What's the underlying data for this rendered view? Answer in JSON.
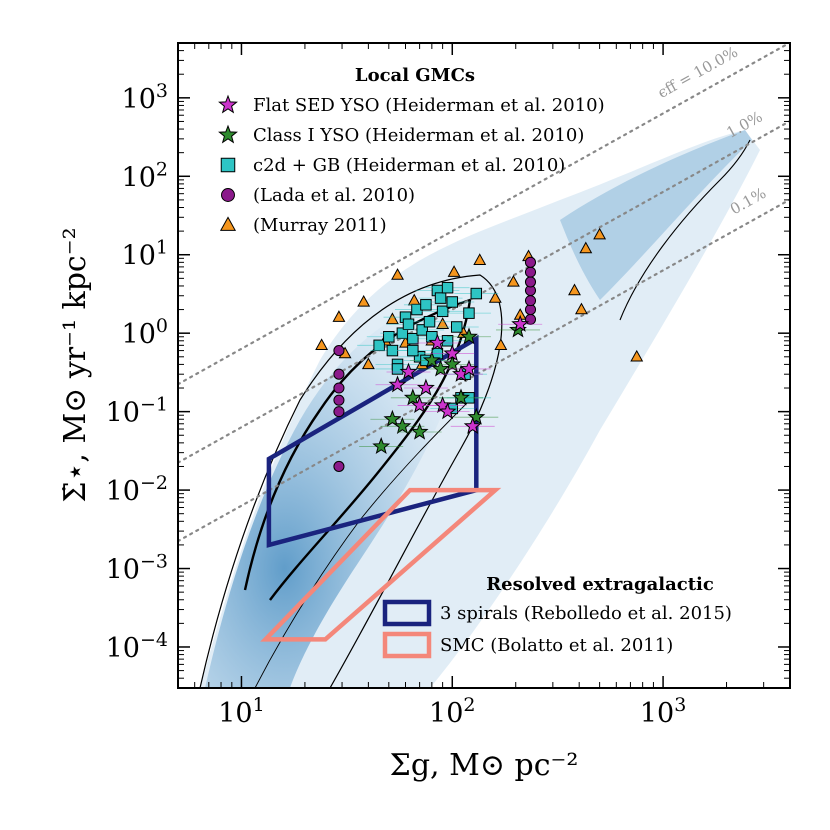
{
  "chart_data": {
    "type": "scatter",
    "title": "",
    "xlabel": "Σg, M⊙ pc⁻²",
    "ylabel": "Σ̇⋆, M⊙ yr⁻¹ kpc⁻²",
    "x_scale": "log",
    "y_scale": "log",
    "xlim": [
      5,
      4000
    ],
    "ylim": [
      3e-05,
      5000
    ],
    "x_ticks": [
      {
        "value": 10,
        "base": "10",
        "exp": "1"
      },
      {
        "value": 100,
        "base": "10",
        "exp": "2"
      },
      {
        "value": 1000,
        "base": "10",
        "exp": "3"
      }
    ],
    "y_ticks": [
      {
        "value": 0.0001,
        "base": "10",
        "exp": "−4"
      },
      {
        "value": 0.001,
        "base": "10",
        "exp": "−3"
      },
      {
        "value": 0.01,
        "base": "10",
        "exp": "−2"
      },
      {
        "value": 0.1,
        "base": "10",
        "exp": "−1"
      },
      {
        "value": 1,
        "base": "10",
        "exp": "0"
      },
      {
        "value": 10,
        "base": "10",
        "exp": "1"
      },
      {
        "value": 100,
        "base": "10",
        "exp": "2"
      },
      {
        "value": 1000,
        "base": "10",
        "exp": "3"
      }
    ],
    "efficiency_lines": [
      {
        "label": "ϵff = 10.0%",
        "eff": 0.1,
        "x_range": [
          5,
          4000
        ],
        "label_x": 1500
      },
      {
        "label": "1.0%",
        "eff": 0.01,
        "x_range": [
          5,
          4000
        ],
        "label_x": 2500
      },
      {
        "label": "0.1%",
        "eff": 0.001,
        "x_range": [
          5,
          4000
        ],
        "label_x": 2600
      }
    ],
    "legend_gmc": {
      "title": "Local GMCs",
      "entries": [
        {
          "label": "Flat SED YSO (Heiderman et al. 2010)",
          "marker": "star",
          "color": "#cc33cc"
        },
        {
          "label": "Class I YSO (Heiderman et al. 2010)",
          "marker": "star",
          "color": "#2e8b2e"
        },
        {
          "label": "c2d + GB (Heiderman et al. 2010)",
          "marker": "square",
          "color": "#2ec4c4"
        },
        {
          "label": "(Lada et al. 2010)",
          "marker": "circle",
          "color": "#8b1a8b"
        },
        {
          "label": "(Murray 2011)",
          "marker": "triangle",
          "color": "#f5961e"
        }
      ]
    },
    "legend_extragalactic": {
      "title": "Resolved extragalactic",
      "entries": [
        {
          "label": "3 spirals (Rebolledo et al. 2015)",
          "color": "#1a237e"
        },
        {
          "label": "SMC (Bolatto et al. 2011)",
          "color": "#f4877a"
        }
      ]
    },
    "regions": [
      {
        "name": "3 spirals",
        "color": "#1a237e",
        "polygon": [
          [
            13.5,
            0.002
          ],
          [
            130,
            0.01
          ],
          [
            130,
            0.85
          ],
          [
            13.5,
            0.025
          ]
        ]
      },
      {
        "name": "SMC",
        "color": "#f4877a",
        "polygon": [
          [
            13,
            0.000125
          ],
          [
            25,
            0.000125
          ],
          [
            160,
            0.01
          ],
          [
            63,
            0.01
          ]
        ]
      }
    ],
    "series": [
      {
        "name": "Flat SED YSO (Heiderman et al. 2010)",
        "marker": "star",
        "color": "#cc33cc",
        "points": [
          [
            55,
            0.22
          ],
          [
            62,
            0.32
          ],
          [
            70,
            0.12
          ],
          [
            75,
            0.2
          ],
          [
            85,
            0.75
          ],
          [
            90,
            0.12
          ],
          [
            100,
            0.55
          ],
          [
            110,
            0.3
          ],
          [
            120,
            0.35
          ],
          [
            125,
            0.065
          ],
          [
            95,
            0.1
          ],
          [
            210,
            1.3
          ]
        ]
      },
      {
        "name": "Class I YSO (Heiderman et al. 2010)",
        "marker": "star",
        "color": "#2e8b2e",
        "points": [
          [
            46,
            0.036
          ],
          [
            52,
            0.08
          ],
          [
            58,
            0.065
          ],
          [
            65,
            0.15
          ],
          [
            70,
            0.055
          ],
          [
            80,
            0.45
          ],
          [
            88,
            0.35
          ],
          [
            100,
            0.4
          ],
          [
            110,
            0.15
          ],
          [
            120,
            0.9
          ],
          [
            130,
            0.085
          ],
          [
            205,
            1.1
          ]
        ]
      },
      {
        "name": "c2d + GB (Heiderman et al. 2010)",
        "marker": "square",
        "color": "#2ec4c4",
        "points": [
          [
            45,
            0.7
          ],
          [
            50,
            0.9
          ],
          [
            52,
            0.6
          ],
          [
            55,
            0.4
          ],
          [
            58,
            1.0
          ],
          [
            60,
            1.6
          ],
          [
            62,
            1.3
          ],
          [
            65,
            0.85
          ],
          [
            68,
            2.0
          ],
          [
            70,
            0.5
          ],
          [
            72,
            1.1
          ],
          [
            75,
            2.3
          ],
          [
            78,
            1.4
          ],
          [
            80,
            0.9
          ],
          [
            85,
            3.5
          ],
          [
            88,
            2.8
          ],
          [
            90,
            1.9
          ],
          [
            95,
            0.8
          ],
          [
            100,
            2.5
          ],
          [
            105,
            1.2
          ],
          [
            110,
            0.15
          ],
          [
            115,
            0.3
          ],
          [
            120,
            1.8
          ],
          [
            130,
            3.2
          ],
          [
            95,
            3.8
          ],
          [
            55,
            0.35
          ],
          [
            65,
            0.6
          ],
          [
            75,
            0.45
          ],
          [
            85,
            0.55
          ],
          [
            100,
            0.11
          ],
          [
            120,
            0.15
          ]
        ]
      },
      {
        "name": "(Lada et al. 2010)",
        "marker": "circle",
        "color": "#8b1a8b",
        "points": [
          [
            29,
            0.02
          ],
          [
            29,
            0.1
          ],
          [
            29,
            0.14
          ],
          [
            29,
            0.2
          ],
          [
            29,
            0.3
          ],
          [
            29,
            0.6
          ],
          [
            235,
            1.5
          ],
          [
            235,
            2.0
          ],
          [
            235,
            2.6
          ],
          [
            235,
            3.5
          ],
          [
            235,
            4.5
          ],
          [
            235,
            6.0
          ],
          [
            235,
            8.0
          ]
        ]
      },
      {
        "name": "(Murray 2011)",
        "marker": "triangle",
        "color": "#f5961e",
        "points": [
          [
            24,
            0.7
          ],
          [
            29,
            1.6
          ],
          [
            31,
            0.55
          ],
          [
            38,
            2.5
          ],
          [
            40,
            0.4
          ],
          [
            48,
            0.8
          ],
          [
            52,
            1.5
          ],
          [
            55,
            5.5
          ],
          [
            60,
            0.75
          ],
          [
            66,
            2.6
          ],
          [
            72,
            0.4
          ],
          [
            80,
            0.8
          ],
          [
            90,
            1.3
          ],
          [
            102,
            6.0
          ],
          [
            113,
            1.0
          ],
          [
            135,
            8.5
          ],
          [
            160,
            2.8
          ],
          [
            170,
            0.7
          ],
          [
            195,
            4.5
          ],
          [
            210,
            1.7
          ],
          [
            230,
            9.5
          ],
          [
            380,
            3.5
          ],
          [
            410,
            2.0
          ],
          [
            430,
            12.0
          ],
          [
            500,
            18.0
          ],
          [
            750,
            0.5
          ]
        ]
      }
    ],
    "background": "2D histogram of simulated star-forming gas (blue), with density contours (black)"
  }
}
